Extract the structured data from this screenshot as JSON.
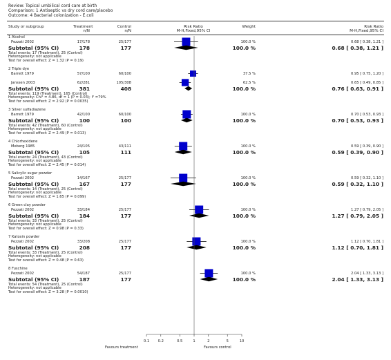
{
  "header": {
    "review": "Review:  Topical umbilical cord care at birth",
    "comparison": "Comparison:  1 Antiseptic vs dry cord care/placebo",
    "outcome": "Outcome:  4 Bacterial colonization - E.coli"
  },
  "columns": {
    "study_l1": "Study or subgroup",
    "treat_l1": "Treatment",
    "treat_l2": "n/N",
    "control_l1": "Control",
    "control_l2": "n/N",
    "rr_l1": "Risk Ratio",
    "rr_l2": "M-H,Fixed,95% CI",
    "weight_l1": "Weight",
    "rrtext_l1": "Risk Ratio",
    "rrtext_l2": "M-H,Fixed,95% CI"
  },
  "footer": {
    "favours_left": "Favours treatment",
    "favours_right": "Favours control"
  },
  "chart_data": {
    "type": "forest",
    "scale": "log",
    "xlim": [
      0.1,
      10
    ],
    "ticks": [
      {
        "v": 0.1,
        "label": "0.1"
      },
      {
        "v": 0.2,
        "label": "0.2"
      },
      {
        "v": 0.5,
        "label": "0.5"
      },
      {
        "v": 1,
        "label": "1"
      },
      {
        "v": 2,
        "label": "2"
      },
      {
        "v": 5,
        "label": "5"
      },
      {
        "v": 10,
        "label": "10"
      }
    ],
    "groups": [
      {
        "title": "1 Alcohol",
        "studies": [
          {
            "name": "Pezzati 2002",
            "treat": "17/178",
            "control": "25/177",
            "weight_text": "100.0 %",
            "weight": 100.0,
            "rr_text": "0.68 [ 0.38, 1.21 ]",
            "rr": 0.68,
            "lo": 0.38,
            "hi": 1.21
          }
        ],
        "subtotal": {
          "label": "Subtotal (95% CI)",
          "treat": "178",
          "control": "177",
          "weight_text": "100.0 %",
          "rr_text": "0.68 [ 0.38, 1.21 ]",
          "rr": 0.68,
          "lo": 0.38,
          "hi": 1.21
        },
        "notes": [
          "Total events: 17 (Treatment), 25 (Control)",
          "Heterogeneity: not applicable",
          "Test for overall effect: Z = 1.32 (P = 0.19)"
        ]
      },
      {
        "title": "2 Triple dye",
        "studies": [
          {
            "name": "Barrett 1979",
            "treat": "57/100",
            "control": "60/100",
            "weight_text": "37.5 %",
            "weight": 37.5,
            "rr_text": "0.95 [ 0.75, 1.20 ]",
            "rr": 0.95,
            "lo": 0.75,
            "hi": 1.2
          },
          {
            "name": "Janssen 2003",
            "treat": "62/281",
            "control": "105/308",
            "weight_text": "62.5 %",
            "weight": 62.5,
            "rr_text": "0.65 [ 0.49, 0.85 ]",
            "rr": 0.65,
            "lo": 0.49,
            "hi": 0.85
          }
        ],
        "subtotal": {
          "label": "Subtotal (95% CI)",
          "treat": "381",
          "control": "408",
          "weight_text": "100.0 %",
          "rr_text": "0.76 [ 0.63, 0.91 ]",
          "rr": 0.76,
          "lo": 0.63,
          "hi": 0.91
        },
        "notes": [
          "Total events: 119 (Treatment), 165 (Control)",
          "Heterogeneity: Chi² = 4.86, df = 1 (P = 0.03); I² =79%",
          "Test for overall effect: Z = 2.92 (P = 0.0035)"
        ]
      },
      {
        "title": "3 Silver sulfadiazene",
        "studies": [
          {
            "name": "Barrett 1979",
            "treat": "42/100",
            "control": "60/100",
            "weight_text": "100.0 %",
            "weight": 100.0,
            "rr_text": "0.70 [ 0.53, 0.93 ]",
            "rr": 0.7,
            "lo": 0.53,
            "hi": 0.93
          }
        ],
        "subtotal": {
          "label": "Subtotal (95% CI)",
          "treat": "100",
          "control": "100",
          "weight_text": "100.0 %",
          "rr_text": "0.70 [ 0.53, 0.93 ]",
          "rr": 0.7,
          "lo": 0.53,
          "hi": 0.93
        },
        "notes": [
          "Total events: 42 (Treatment), 60 (Control)",
          "Heterogeneity: not applicable",
          "Test for overall effect: Z = 2.49 (P = 0.013)"
        ]
      },
      {
        "title": "4 Chlorhexidene",
        "studies": [
          {
            "name": "Meberg 1985",
            "treat": "24/105",
            "control": "43/111",
            "weight_text": "100.0 %",
            "weight": 100.0,
            "rr_text": "0.59 [ 0.39, 0.90 ]",
            "rr": 0.59,
            "lo": 0.39,
            "hi": 0.9
          }
        ],
        "subtotal": {
          "label": "Subtotal (95% CI)",
          "treat": "105",
          "control": "111",
          "weight_text": "100.0 %",
          "rr_text": "0.59 [ 0.39, 0.90 ]",
          "rr": 0.59,
          "lo": 0.39,
          "hi": 0.9
        },
        "notes": [
          "Total events: 24 (Treatment), 43 (Control)",
          "Heterogeneity: not applicable",
          "Test for overall effect: Z = 2.45 (P = 0.014)"
        ]
      },
      {
        "title": "5 Salicylic sugar powder",
        "studies": [
          {
            "name": "Pezzati 2002",
            "treat": "14/167",
            "control": "25/177",
            "weight_text": "100.0 %",
            "weight": 100.0,
            "rr_text": "0.59 [ 0.32, 1.10 ]",
            "rr": 0.59,
            "lo": 0.32,
            "hi": 1.1
          }
        ],
        "subtotal": {
          "label": "Subtotal (95% CI)",
          "treat": "167",
          "control": "177",
          "weight_text": "100.0 %",
          "rr_text": "0.59 [ 0.32, 1.10 ]",
          "rr": 0.59,
          "lo": 0.32,
          "hi": 1.1
        },
        "notes": [
          "Total events: 14 (Treatment), 25 (Control)",
          "Heterogeneity: not applicable",
          "Test for overall effect: Z = 1.65 (P = 0.099)"
        ]
      },
      {
        "title": "6 Green clay powder",
        "studies": [
          {
            "name": "Pezzati 2002",
            "treat": "33/184",
            "control": "25/177",
            "weight_text": "100.0 %",
            "weight": 100.0,
            "rr_text": "1.27 [ 0.79, 2.05 ]",
            "rr": 1.27,
            "lo": 0.79,
            "hi": 2.05
          }
        ],
        "subtotal": {
          "label": "Subtotal (95% CI)",
          "treat": "184",
          "control": "177",
          "weight_text": "100.0 %",
          "rr_text": "1.27 [ 0.79, 2.05 ]",
          "rr": 1.27,
          "lo": 0.79,
          "hi": 2.05
        },
        "notes": [
          "Total events: 33 (Treatment), 25 (Control)",
          "Heterogeneity: not applicable",
          "Test for overall effect: Z = 0.98 (P = 0.33)"
        ]
      },
      {
        "title": "7 Katoxin powder",
        "studies": [
          {
            "name": "Pezzati 2002",
            "treat": "33/208",
            "control": "25/177",
            "weight_text": "100.0 %",
            "weight": 100.0,
            "rr_text": "1.12 [ 0.70, 1.81 ]",
            "rr": 1.12,
            "lo": 0.7,
            "hi": 1.81
          }
        ],
        "subtotal": {
          "label": "Subtotal (95% CI)",
          "treat": "208",
          "control": "177",
          "weight_text": "100.0 %",
          "rr_text": "1.12 [ 0.70, 1.81 ]",
          "rr": 1.12,
          "lo": 0.7,
          "hi": 1.81
        },
        "notes": [
          "Total events: 33 (Treatment), 25 (Control)",
          "Heterogeneity: not applicable",
          "Test for overall effect: Z = 0.48 (P = 0.63)"
        ]
      },
      {
        "title": "8 Fuschine",
        "studies": [
          {
            "name": "Pezzati 2002",
            "treat": "54/187",
            "control": "25/177",
            "weight_text": "100.0 %",
            "weight": 100.0,
            "rr_text": "2.04 [ 1.33, 3.13 ]",
            "rr": 2.04,
            "lo": 1.33,
            "hi": 3.13
          }
        ],
        "subtotal": {
          "label": "Subtotal (95% CI)",
          "treat": "187",
          "control": "177",
          "weight_text": "100.0 %",
          "rr_text": "2.04 [ 1.33, 3.13 ]",
          "rr": 2.04,
          "lo": 1.33,
          "hi": 3.13
        },
        "notes": [
          "Total events: 54 (Treatment), 25 (Control)",
          "Heterogeneity: not applicable",
          "Test for overall effect: Z = 3.28 (P = 0.0010)"
        ]
      }
    ]
  },
  "colors": {
    "box": "#0000cc",
    "diamond": "#000000",
    "text": "#222222",
    "rule": "#333333"
  }
}
